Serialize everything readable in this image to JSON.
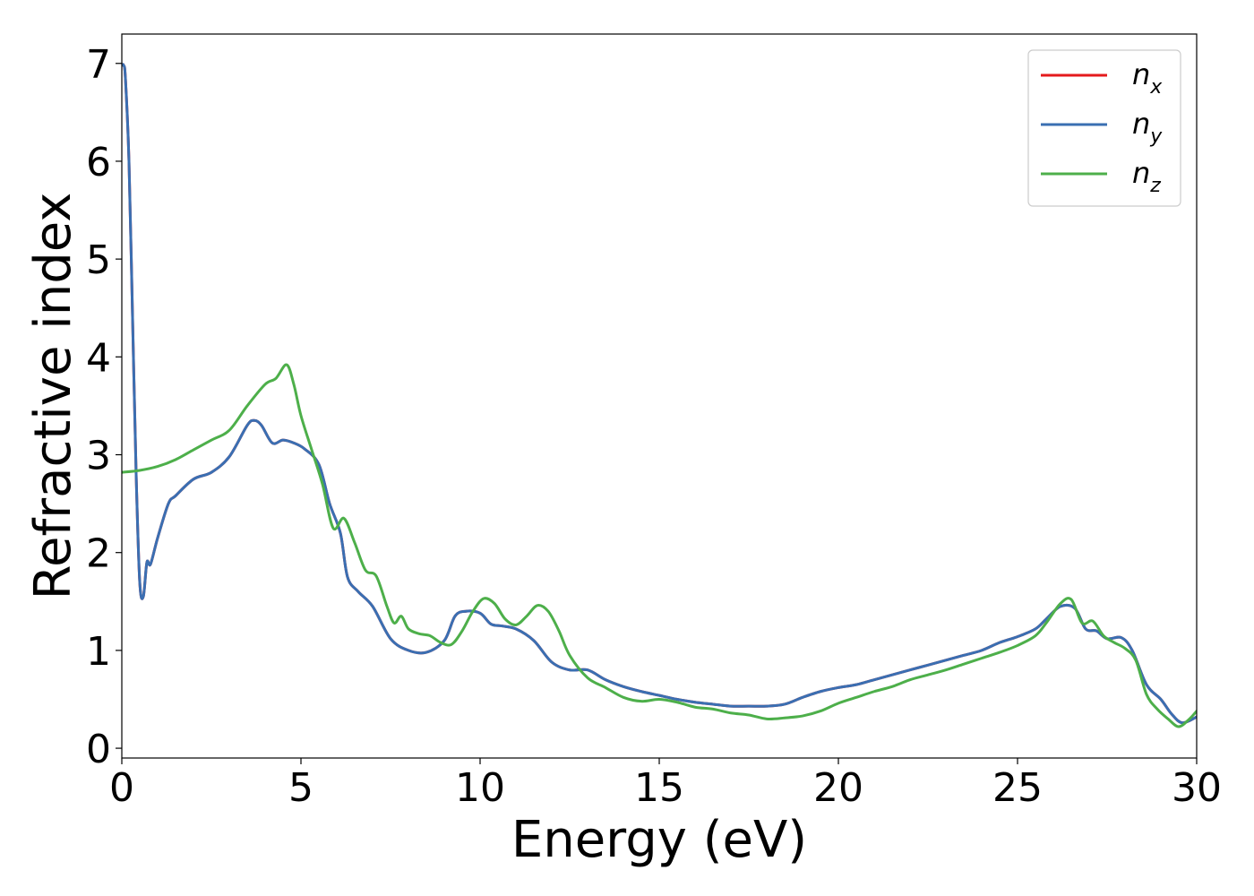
{
  "chart_data": {
    "type": "line",
    "xlabel": "Energy (eV)",
    "ylabel": "Refractive index",
    "xlim": [
      0,
      30
    ],
    "ylim": [
      -0.1,
      7.3
    ],
    "xticks": [
      0,
      5,
      10,
      15,
      20,
      25,
      30
    ],
    "xtick_labels": [
      "0",
      "5",
      "10",
      "15",
      "20",
      "25",
      "30"
    ],
    "yticks": [
      0,
      1,
      2,
      3,
      4,
      5,
      6,
      7
    ],
    "ytick_labels": [
      "0",
      "1",
      "2",
      "3",
      "4",
      "5",
      "6",
      "7"
    ],
    "grid": false,
    "legend_position": "top-right",
    "series": [
      {
        "name": "n_x",
        "label_main": "n",
        "label_sub": "x",
        "color": "#e41a1c",
        "x": [
          0.0,
          0.05,
          0.1,
          0.2,
          0.3,
          0.4,
          0.5,
          0.6,
          0.7,
          0.8,
          1.0,
          1.3,
          1.5,
          2.0,
          2.5,
          3.0,
          3.5,
          3.7,
          3.9,
          4.2,
          4.5,
          4.8,
          5.1,
          5.5,
          5.8,
          6.1,
          6.3,
          6.6,
          7.0,
          7.5,
          8.0,
          8.5,
          9.0,
          9.3,
          9.6,
          10.0,
          10.3,
          10.6,
          11.0,
          11.5,
          12.0,
          12.5,
          13.0,
          13.5,
          14.0,
          14.5,
          15.0,
          15.5,
          16.0,
          16.5,
          17.0,
          17.5,
          18.0,
          18.5,
          19.0,
          19.5,
          20.0,
          20.5,
          21.0,
          21.5,
          22.0,
          22.5,
          23.0,
          23.5,
          24.0,
          24.5,
          25.0,
          25.5,
          25.8,
          26.2,
          26.6,
          26.9,
          27.2,
          27.5,
          27.9,
          28.2,
          28.6,
          29.0,
          29.3,
          29.6,
          30.0
        ],
        "y": [
          6.98,
          6.98,
          6.85,
          6.0,
          4.4,
          2.8,
          1.7,
          1.55,
          1.9,
          1.88,
          2.15,
          2.5,
          2.58,
          2.75,
          2.82,
          2.98,
          3.3,
          3.35,
          3.3,
          3.12,
          3.15,
          3.12,
          3.06,
          2.9,
          2.5,
          2.2,
          1.75,
          1.6,
          1.45,
          1.12,
          1.0,
          0.98,
          1.1,
          1.35,
          1.4,
          1.38,
          1.27,
          1.25,
          1.22,
          1.1,
          0.88,
          0.8,
          0.8,
          0.7,
          0.63,
          0.58,
          0.54,
          0.5,
          0.47,
          0.45,
          0.43,
          0.43,
          0.43,
          0.45,
          0.52,
          0.58,
          0.62,
          0.65,
          0.7,
          0.75,
          0.8,
          0.85,
          0.9,
          0.95,
          1.0,
          1.08,
          1.14,
          1.22,
          1.32,
          1.45,
          1.43,
          1.22,
          1.2,
          1.12,
          1.13,
          1.0,
          0.65,
          0.5,
          0.35,
          0.26,
          0.32
        ]
      },
      {
        "name": "n_y",
        "label_main": "n",
        "label_sub": "y",
        "color": "#3a6fb2",
        "x": [
          0.0,
          0.05,
          0.1,
          0.2,
          0.3,
          0.4,
          0.5,
          0.6,
          0.7,
          0.8,
          1.0,
          1.3,
          1.5,
          2.0,
          2.5,
          3.0,
          3.5,
          3.7,
          3.9,
          4.2,
          4.5,
          4.8,
          5.1,
          5.5,
          5.8,
          6.1,
          6.3,
          6.6,
          7.0,
          7.5,
          8.0,
          8.5,
          9.0,
          9.3,
          9.6,
          10.0,
          10.3,
          10.6,
          11.0,
          11.5,
          12.0,
          12.5,
          13.0,
          13.5,
          14.0,
          14.5,
          15.0,
          15.5,
          16.0,
          16.5,
          17.0,
          17.5,
          18.0,
          18.5,
          19.0,
          19.5,
          20.0,
          20.5,
          21.0,
          21.5,
          22.0,
          22.5,
          23.0,
          23.5,
          24.0,
          24.5,
          25.0,
          25.5,
          25.8,
          26.2,
          26.6,
          26.9,
          27.2,
          27.5,
          27.9,
          28.2,
          28.6,
          29.0,
          29.3,
          29.6,
          30.0
        ],
        "y": [
          6.98,
          6.98,
          6.85,
          6.0,
          4.4,
          2.8,
          1.7,
          1.55,
          1.9,
          1.88,
          2.15,
          2.5,
          2.58,
          2.75,
          2.82,
          2.98,
          3.3,
          3.35,
          3.3,
          3.12,
          3.15,
          3.12,
          3.06,
          2.9,
          2.5,
          2.2,
          1.75,
          1.6,
          1.45,
          1.12,
          1.0,
          0.98,
          1.1,
          1.35,
          1.4,
          1.38,
          1.27,
          1.25,
          1.22,
          1.1,
          0.88,
          0.8,
          0.8,
          0.7,
          0.63,
          0.58,
          0.54,
          0.5,
          0.47,
          0.45,
          0.43,
          0.43,
          0.43,
          0.45,
          0.52,
          0.58,
          0.62,
          0.65,
          0.7,
          0.75,
          0.8,
          0.85,
          0.9,
          0.95,
          1.0,
          1.08,
          1.14,
          1.22,
          1.32,
          1.45,
          1.43,
          1.22,
          1.2,
          1.12,
          1.13,
          1.0,
          0.65,
          0.5,
          0.35,
          0.26,
          0.32
        ]
      },
      {
        "name": "n_z",
        "label_main": "n",
        "label_sub": "z",
        "color": "#4daf4a",
        "x": [
          0.0,
          0.5,
          1.0,
          1.5,
          2.0,
          2.5,
          3.0,
          3.5,
          4.0,
          4.3,
          4.6,
          4.8,
          5.0,
          5.3,
          5.6,
          5.9,
          6.2,
          6.5,
          6.8,
          7.1,
          7.4,
          7.6,
          7.8,
          8.0,
          8.3,
          8.6,
          8.9,
          9.2,
          9.5,
          9.8,
          10.1,
          10.4,
          10.7,
          11.0,
          11.3,
          11.6,
          11.9,
          12.2,
          12.5,
          13.0,
          13.5,
          14.0,
          14.5,
          15.0,
          15.5,
          16.0,
          16.5,
          17.0,
          17.5,
          18.0,
          18.5,
          19.0,
          19.5,
          20.0,
          20.5,
          21.0,
          21.5,
          22.0,
          22.5,
          23.0,
          23.5,
          24.0,
          24.5,
          25.0,
          25.5,
          25.8,
          26.2,
          26.5,
          26.8,
          27.1,
          27.4,
          27.7,
          28.0,
          28.3,
          28.6,
          28.9,
          29.2,
          29.5,
          29.8,
          30.0
        ],
        "y": [
          2.82,
          2.84,
          2.88,
          2.95,
          3.05,
          3.15,
          3.25,
          3.5,
          3.72,
          3.78,
          3.92,
          3.72,
          3.4,
          3.05,
          2.7,
          2.25,
          2.35,
          2.1,
          1.82,
          1.76,
          1.45,
          1.28,
          1.35,
          1.22,
          1.17,
          1.15,
          1.08,
          1.06,
          1.2,
          1.4,
          1.53,
          1.48,
          1.32,
          1.26,
          1.35,
          1.46,
          1.4,
          1.2,
          0.95,
          0.72,
          0.62,
          0.52,
          0.48,
          0.5,
          0.47,
          0.42,
          0.4,
          0.36,
          0.34,
          0.3,
          0.31,
          0.33,
          0.38,
          0.46,
          0.52,
          0.58,
          0.63,
          0.7,
          0.75,
          0.8,
          0.86,
          0.92,
          0.98,
          1.05,
          1.15,
          1.28,
          1.48,
          1.52,
          1.28,
          1.3,
          1.15,
          1.08,
          1.02,
          0.9,
          0.55,
          0.4,
          0.3,
          0.22,
          0.3,
          0.38
        ]
      }
    ]
  }
}
